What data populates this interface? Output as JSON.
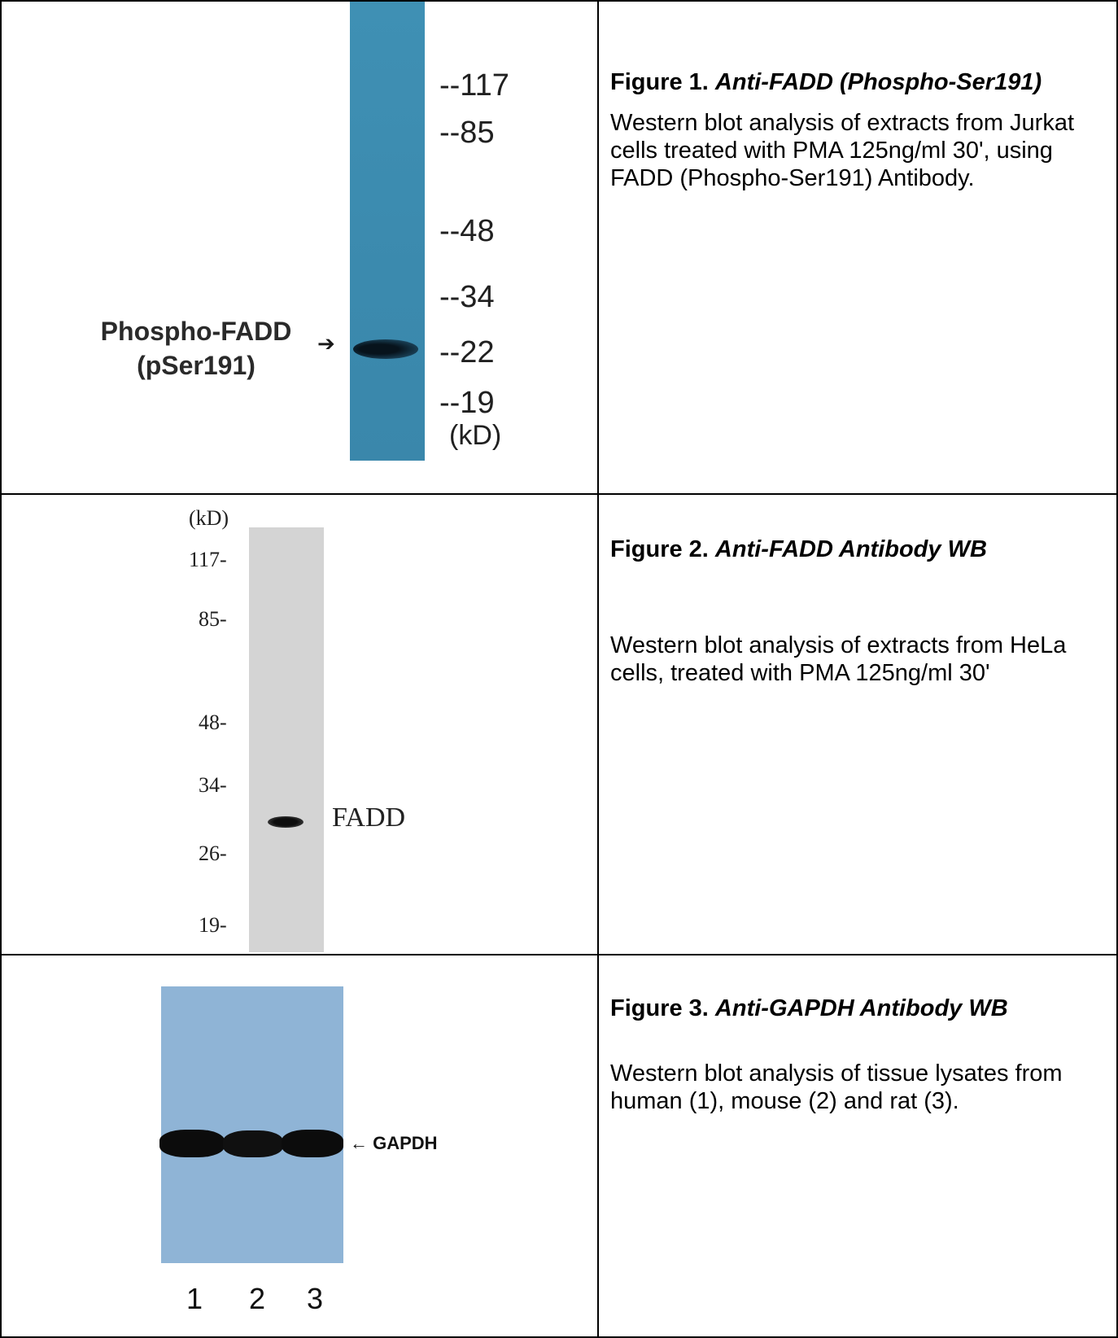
{
  "figures": [
    {
      "title_prefix": "Figure 1.",
      "title_italic": "Anti-FADD (Phospho-Ser191)",
      "body": "Western blot analysis of extracts from Jurkat cells treated with PMA 125ng/ml 30', using FADD (Phospho-Ser191) Antibody.",
      "blot": {
        "markers": [
          "--117",
          "--85",
          "--48",
          "--34",
          "--22",
          "--19"
        ],
        "unit": "(kD)",
        "band_label_line1": "Phospho-FADD",
        "band_label_line2": "(pSer191)",
        "arrow": "➔",
        "colors": {
          "membrane": "#3d8cb0",
          "band": "#0b1a26"
        }
      }
    },
    {
      "title_prefix": "Figure 2.",
      "title_italic": "Anti-FADD Antibody WB",
      "body": "Western blot analysis of extracts from HeLa cells, treated with PMA 125ng/ml 30'",
      "blot": {
        "unit": "(kD)",
        "markers": [
          "117-",
          "85-",
          "48-",
          "34-",
          "26-",
          "19-"
        ],
        "band_label": "FADD",
        "colors": {
          "membrane": "#d4d4d4",
          "band": "#111111"
        }
      }
    },
    {
      "title_prefix": "Figure 3.",
      "title_italic": "Anti-GAPDH Antibody WB",
      "body": "Western blot analysis of tissue lysates from human (1), mouse (2) and rat (3).",
      "blot": {
        "band_label": "← GAPDH",
        "lanes": [
          "1",
          "2",
          "3"
        ],
        "colors": {
          "membrane": "#8fb4d6",
          "band": "#0c0c0c"
        }
      }
    }
  ]
}
